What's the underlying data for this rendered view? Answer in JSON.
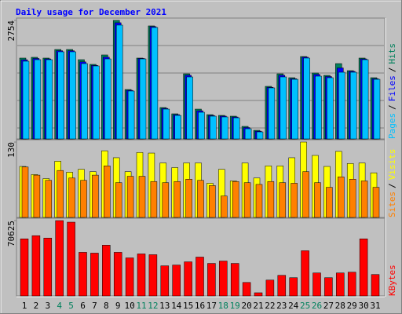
{
  "chart_data": [
    {
      "type": "bar",
      "title": "Daily usage for December 2021",
      "legend_separator": "/",
      "ylim": [
        0,
        2754
      ],
      "yticks": [
        2754
      ],
      "series": [
        {
          "name": "Pages",
          "color": "#00c0ff",
          "values": [
            1806,
            1842,
            1842,
            2025,
            2025,
            1751,
            1696,
            1860,
            2645,
            1113,
            1860,
            2590,
            693,
            547,
            1441,
            620,
            529,
            511,
            492,
            237,
            164,
            1186,
            1441,
            1386,
            1879,
            1459,
            1423,
            1550,
            1550,
            1842,
            1386
          ]
        },
        {
          "name": "Files",
          "color": "#0000ff",
          "values": [
            1840,
            1870,
            1860,
            2050,
            2050,
            1790,
            1710,
            1900,
            2700,
            1130,
            1870,
            2610,
            710,
            565,
            1480,
            655,
            545,
            530,
            510,
            265,
            180,
            1200,
            1480,
            1400,
            1900,
            1500,
            1450,
            1650,
            1570,
            1860,
            1400
          ]
        },
        {
          "name": "Hits",
          "color": "#00805c",
          "values": [
            1879,
            1897,
            1879,
            2079,
            2079,
            1842,
            1733,
            1952,
            2754,
            1149,
            1879,
            2627,
            730,
            584,
            1514,
            693,
            565,
            547,
            529,
            292,
            201,
            1222,
            1514,
            1423,
            1915,
            1532,
            1477,
            1751,
            1587,
            1879,
            1423
          ]
        }
      ]
    },
    {
      "type": "bar",
      "legend_separator": "/",
      "ylim": [
        0,
        130
      ],
      "yticks": [
        130
      ],
      "series": [
        {
          "name": "Sites",
          "color": "#ff8000",
          "values": [
            87,
            73,
            64,
            81,
            68,
            64,
            73,
            89,
            60,
            71,
            71,
            62,
            60,
            62,
            66,
            64,
            55,
            37,
            62,
            60,
            57,
            62,
            60,
            59,
            79,
            60,
            52,
            70,
            66,
            63,
            52
          ]
        },
        {
          "name": "Visits",
          "color": "#ffff00",
          "values": [
            88,
            74,
            67,
            97,
            78,
            83,
            79,
            115,
            103,
            79,
            112,
            111,
            94,
            86,
            94,
            94,
            59,
            83,
            63,
            94,
            68,
            89,
            89,
            103,
            130,
            107,
            88,
            114,
            93,
            94,
            77
          ]
        }
      ]
    },
    {
      "type": "bar",
      "ylim": [
        0,
        70625
      ],
      "yticks": [
        70625
      ],
      "series": [
        {
          "name": "KBytes",
          "color": "#ff0000",
          "values": [
            53525,
            56500,
            54270,
            70625,
            69140,
            40890,
            40140,
            47580,
            40890,
            35680,
            39400,
            38660,
            28250,
            28990,
            31970,
            36430,
            30480,
            32710,
            30480,
            12640,
            2970,
            14870,
            19330,
            17100,
            42370,
            21560,
            17100,
            21560,
            22300,
            53525,
            20070
          ]
        }
      ],
      "categories": [
        "1",
        "2",
        "3",
        "4",
        "5",
        "6",
        "7",
        "8",
        "9",
        "10",
        "11",
        "12",
        "13",
        "14",
        "15",
        "16",
        "17",
        "18",
        "19",
        "20",
        "21",
        "22",
        "23",
        "24",
        "25",
        "26",
        "27",
        "28",
        "29",
        "30",
        "31"
      ],
      "category_colors": [
        "#000000",
        "#000000",
        "#000000",
        "#00805c",
        "#00805c",
        "#000000",
        "#000000",
        "#000000",
        "#000000",
        "#000000",
        "#00805c",
        "#00805c",
        "#000000",
        "#000000",
        "#000000",
        "#000000",
        "#000000",
        "#00805c",
        "#00805c",
        "#000000",
        "#000000",
        "#000000",
        "#000000",
        "#000000",
        "#00805c",
        "#00805c",
        "#000000",
        "#000000",
        "#000000",
        "#000000",
        "#000000"
      ]
    }
  ]
}
